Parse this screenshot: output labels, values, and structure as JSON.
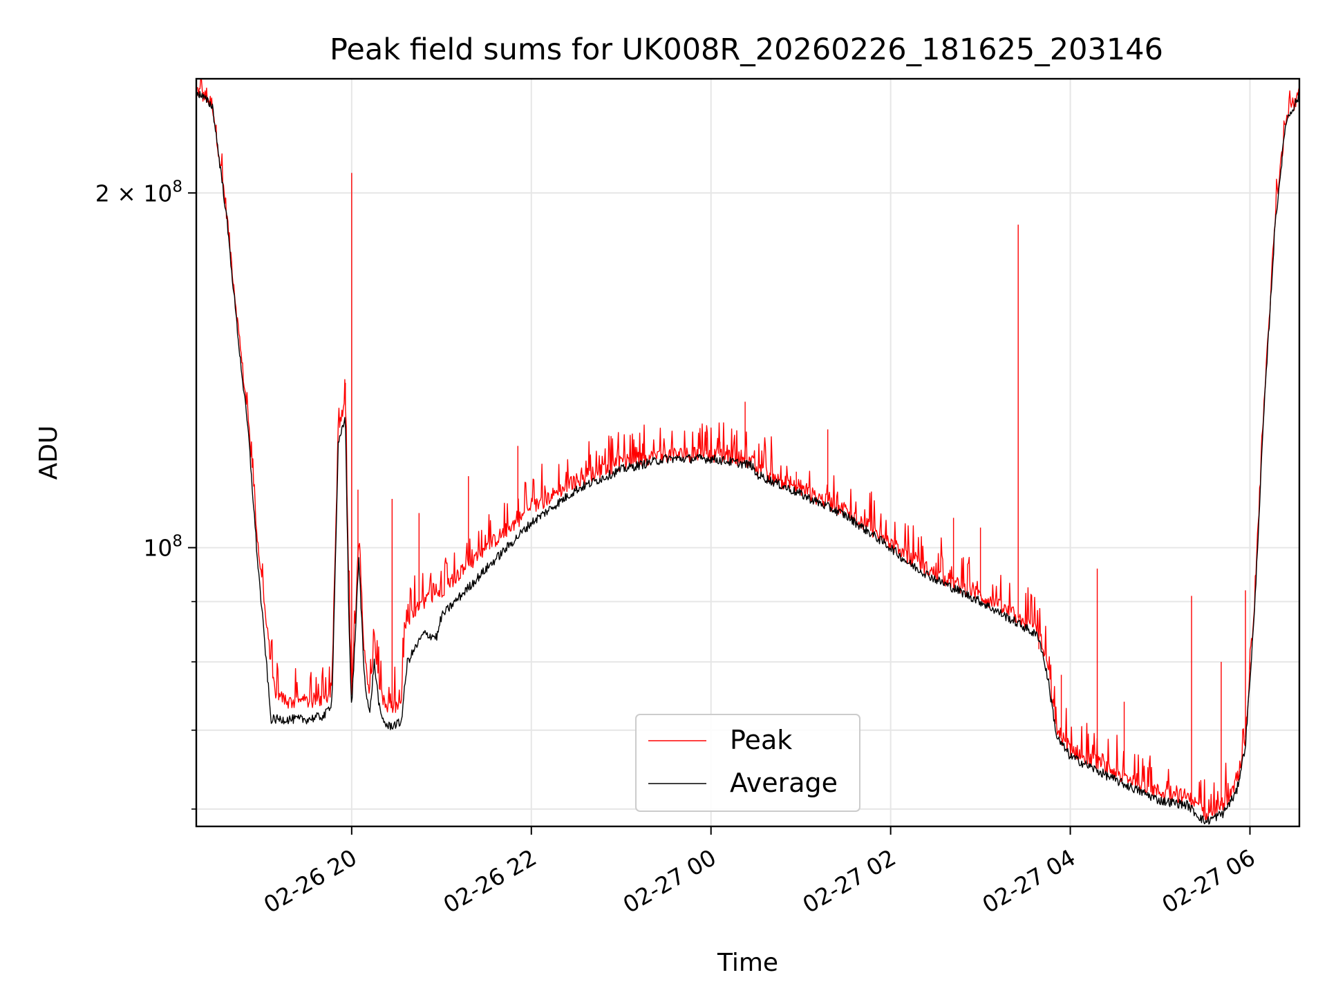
{
  "chart_data": {
    "type": "line",
    "title": "Peak field sums for UK008R_20260226_181625_203146",
    "xlabel": "Time",
    "ylabel": "ADU",
    "yscale": "log",
    "ylim": [
      58000000,
      250000000
    ],
    "xlim_hours": [
      18.27,
      30.55
    ],
    "grid": true,
    "x_ticks": [
      {
        "hour": 20,
        "label": "02-26 20"
      },
      {
        "hour": 22,
        "label": "02-26 22"
      },
      {
        "hour": 24,
        "label": "02-27 00"
      },
      {
        "hour": 26,
        "label": "02-27 02"
      },
      {
        "hour": 28,
        "label": "02-27 04"
      },
      {
        "hour": 30,
        "label": "02-27 06"
      }
    ],
    "y_major_ticks": [
      {
        "value": 100000000,
        "base": "10",
        "exp": "8",
        "coef": ""
      },
      {
        "value": 200000000,
        "base": "10",
        "exp": "8",
        "coef": "2 × "
      }
    ],
    "y_minor_ticks": [
      60000000,
      70000000,
      80000000,
      90000000
    ],
    "series": [
      {
        "name": "Peak",
        "color": "#ff0000",
        "baseline_keypoints": [
          [
            18.27,
            245000000
          ],
          [
            18.45,
            238000000
          ],
          [
            18.6,
            195000000
          ],
          [
            18.75,
            150000000
          ],
          [
            18.85,
            128000000
          ],
          [
            18.95,
            102000000
          ],
          [
            19.05,
            86000000
          ],
          [
            19.15,
            75000000
          ],
          [
            19.3,
            74000000
          ],
          [
            19.5,
            74000000
          ],
          [
            19.7,
            74500000
          ],
          [
            19.78,
            76000000
          ],
          [
            19.85,
            126000000
          ],
          [
            19.93,
            132000000
          ],
          [
            19.97,
            90000000
          ],
          [
            20.0,
            75000000
          ],
          [
            20.08,
            102000000
          ],
          [
            20.14,
            82000000
          ],
          [
            20.2,
            75000000
          ],
          [
            20.25,
            84000000
          ],
          [
            20.32,
            75000000
          ],
          [
            20.4,
            73000000
          ],
          [
            20.55,
            73500000
          ],
          [
            20.6,
            86000000
          ],
          [
            20.8,
            90000000
          ],
          [
            21.0,
            92000000
          ],
          [
            21.5,
            100000000
          ],
          [
            22.0,
            108000000
          ],
          [
            22.5,
            114000000
          ],
          [
            23.0,
            118000000
          ],
          [
            23.5,
            120000000
          ],
          [
            24.0,
            120000000
          ],
          [
            24.45,
            118500000
          ],
          [
            24.5,
            116500000
          ],
          [
            25.0,
            112000000
          ],
          [
            25.5,
            107500000
          ],
          [
            26.0,
            101000000
          ],
          [
            26.2,
            98000000
          ],
          [
            26.5,
            95000000
          ],
          [
            27.0,
            91000000
          ],
          [
            27.5,
            86500000
          ],
          [
            27.65,
            85000000
          ],
          [
            27.75,
            78500000
          ],
          [
            27.85,
            70000000
          ],
          [
            28.0,
            67500000
          ],
          [
            28.5,
            64500000
          ],
          [
            29.0,
            62000000
          ],
          [
            29.3,
            61500000
          ],
          [
            29.5,
            59500000
          ],
          [
            29.7,
            60500000
          ],
          [
            29.85,
            63000000
          ],
          [
            29.95,
            69000000
          ],
          [
            30.05,
            90000000
          ],
          [
            30.15,
            130000000
          ],
          [
            30.28,
            190000000
          ],
          [
            30.4,
            232000000
          ],
          [
            30.55,
            243000000
          ]
        ],
        "spikes": [
          [
            20.0,
            208000000
          ],
          [
            19.93,
            138000000
          ],
          [
            20.07,
            112000000
          ],
          [
            20.45,
            110000000
          ],
          [
            20.75,
            107000000
          ],
          [
            21.3,
            115000000
          ],
          [
            21.85,
            122000000
          ],
          [
            23.25,
            123000000
          ],
          [
            23.95,
            124000000
          ],
          [
            24.1,
            123000000
          ],
          [
            24.38,
            133000000
          ],
          [
            24.95,
            116000000
          ],
          [
            25.3,
            126000000
          ],
          [
            25.95,
            104000000
          ],
          [
            26.25,
            100000000
          ],
          [
            26.7,
            106000000
          ],
          [
            27.0,
            104000000
          ],
          [
            27.42,
            188000000
          ],
          [
            27.65,
            82000000
          ],
          [
            27.9,
            78000000
          ],
          [
            28.3,
            96000000
          ],
          [
            28.6,
            74000000
          ],
          [
            29.35,
            91000000
          ],
          [
            29.68,
            80000000
          ],
          [
            29.95,
            92000000
          ],
          [
            30.0,
            80000000
          ]
        ]
      },
      {
        "name": "Average",
        "color": "#000000",
        "baseline_keypoints": [
          [
            18.27,
            244000000
          ],
          [
            18.45,
            237000000
          ],
          [
            18.6,
            193000000
          ],
          [
            18.75,
            147000000
          ],
          [
            18.85,
            125000000
          ],
          [
            18.95,
            98000000
          ],
          [
            19.05,
            80000000
          ],
          [
            19.1,
            71500000
          ],
          [
            19.3,
            71500000
          ],
          [
            19.5,
            71500000
          ],
          [
            19.7,
            72000000
          ],
          [
            19.78,
            74000000
          ],
          [
            19.85,
            122000000
          ],
          [
            19.93,
            129000000
          ],
          [
            19.97,
            86000000
          ],
          [
            20.0,
            73000000
          ],
          [
            20.08,
            98000000
          ],
          [
            20.14,
            78000000
          ],
          [
            20.2,
            72000000
          ],
          [
            20.25,
            80000000
          ],
          [
            20.32,
            72000000
          ],
          [
            20.4,
            70500000
          ],
          [
            20.55,
            71000000
          ],
          [
            20.62,
            80000000
          ],
          [
            20.8,
            84500000
          ],
          [
            20.95,
            84000000
          ],
          [
            21.0,
            87500000
          ],
          [
            21.5,
            96000000
          ],
          [
            22.0,
            105000000
          ],
          [
            22.5,
            112000000
          ],
          [
            23.0,
            116500000
          ],
          [
            23.5,
            119000000
          ],
          [
            24.0,
            119000000
          ],
          [
            24.45,
            117500000
          ],
          [
            24.5,
            115500000
          ],
          [
            25.0,
            111000000
          ],
          [
            25.5,
            106500000
          ],
          [
            26.0,
            100000000
          ],
          [
            26.2,
            97000000
          ],
          [
            26.5,
            94000000
          ],
          [
            27.0,
            90000000
          ],
          [
            27.5,
            85500000
          ],
          [
            27.65,
            84000000
          ],
          [
            27.75,
            77500000
          ],
          [
            27.85,
            69000000
          ],
          [
            28.0,
            66500000
          ],
          [
            28.5,
            63500000
          ],
          [
            29.0,
            61000000
          ],
          [
            29.3,
            60500000
          ],
          [
            29.5,
            58500000
          ],
          [
            29.7,
            59500000
          ],
          [
            29.85,
            62000000
          ],
          [
            29.95,
            68000000
          ],
          [
            30.05,
            88000000
          ],
          [
            30.15,
            128000000
          ],
          [
            30.28,
            188000000
          ],
          [
            30.4,
            230000000
          ],
          [
            30.55,
            242000000
          ]
        ]
      }
    ],
    "legend": {
      "position": "lower-center",
      "entries": [
        "Peak",
        "Average"
      ]
    }
  }
}
